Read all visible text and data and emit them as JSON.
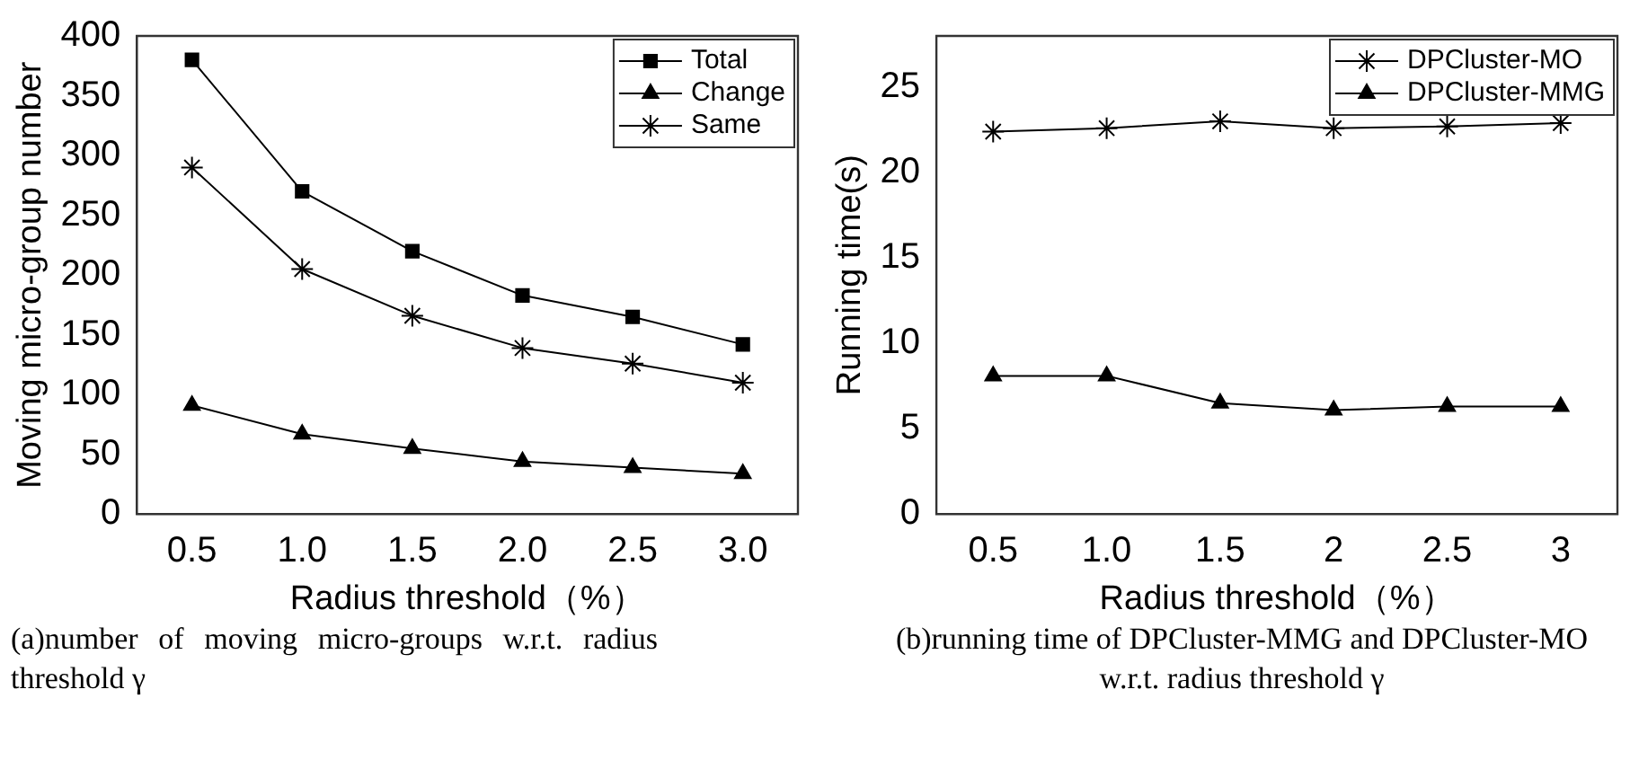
{
  "chart_data": [
    {
      "type": "line",
      "xlabel": "Radius threshold（%）",
      "ylabel": "Moving micro-group number",
      "categories": [
        "0.5",
        "1.0",
        "1.5",
        "2.0",
        "2.5",
        "3.0"
      ],
      "ylim": [
        0,
        400
      ],
      "yticks": [
        0,
        50,
        100,
        150,
        200,
        250,
        300,
        350,
        400
      ],
      "grid": false,
      "legend": "top right",
      "line_style": "solid",
      "series": [
        {
          "name": "Total",
          "color": "#000000",
          "marker": "square",
          "values": [
            380,
            270,
            220,
            183,
            165,
            142
          ]
        },
        {
          "name": "Change",
          "color": "#000000",
          "marker": "triangle",
          "values": [
            91,
            67,
            55,
            44,
            39,
            34
          ]
        },
        {
          "name": "Same",
          "color": "#000000",
          "marker": "cross",
          "values": [
            290,
            205,
            166,
            139,
            126,
            110
          ]
        }
      ],
      "annotations": [
        "(a)number of moving micro-groups w.r.t. radius threshold γ"
      ]
    },
    {
      "type": "line",
      "xlabel": "Radius threshold（%）",
      "ylabel": "Running time(s)",
      "categories": [
        "0.5",
        "1.0",
        "1.5",
        "2",
        "2.5",
        "3"
      ],
      "ylim": [
        0,
        28
      ],
      "yticks": [
        0,
        5,
        10,
        15,
        20,
        25
      ],
      "grid": false,
      "legend": "top right",
      "line_style": "solid",
      "series": [
        {
          "name": "DPCluster-MO",
          "color": "#000000",
          "marker": "cross",
          "values": [
            22.4,
            22.6,
            23.0,
            22.6,
            22.7,
            22.9
          ]
        },
        {
          "name": "DPCluster-MMG",
          "color": "#000000",
          "marker": "triangle",
          "values": [
            8.1,
            8.1,
            6.5,
            6.1,
            6.3,
            6.3
          ]
        }
      ],
      "annotations": [
        "(b)running time of DPCluster-MMG and DPCluster-MO w.r.t. radius threshold γ"
      ]
    }
  ]
}
